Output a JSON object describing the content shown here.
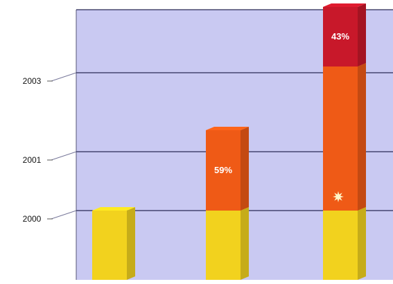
{
  "chart_data": {
    "type": "bar",
    "stacked": true,
    "title": "",
    "xlabel": "",
    "ylabel": "",
    "y_ticks": [
      "2000",
      "2001",
      "2003"
    ],
    "grid": true,
    "legend": "none",
    "categories": [
      "",
      "",
      ""
    ],
    "series": [
      {
        "values": [
          1,
          1,
          1
        ],
        "color": "#f2d21e"
      },
      {
        "values": [
          0,
          1,
          2
        ],
        "color": "#ef5a16"
      },
      {
        "values": [
          0,
          0,
          1
        ],
        "color": "#c8182a"
      }
    ],
    "data_labels": [
      {
        "category": 1,
        "series": 1,
        "text": "59%"
      },
      {
        "category": 2,
        "series": 2,
        "text": "43%"
      }
    ],
    "marker": {
      "category": 2,
      "series": 1,
      "icon": "star-burst-icon"
    },
    "colors": {
      "plot_background": "#c9c9f2",
      "plot_side": "#ffffff",
      "gridline": "#2a2a55",
      "bar_yellow": "#f2d21e",
      "bar_orange": "#ef5a16",
      "bar_red": "#c8182a"
    }
  }
}
